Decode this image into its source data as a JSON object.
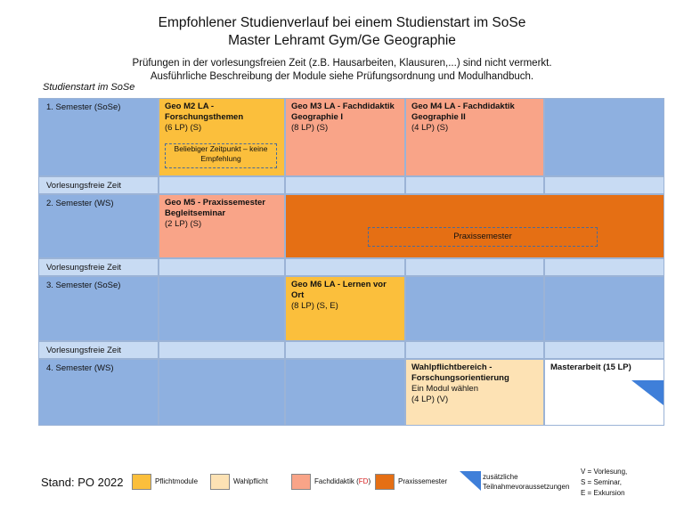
{
  "header": {
    "title_line1": "Empfohlener Studienverlauf bei einem Studienstart im SoSe",
    "title_line2": "Master Lehramt Gym/Ge Geographie",
    "note_line1": "Prüfungen in der vorlesungsfreien Zeit (z.B. Hausarbeiten, Klausuren,...) sind nicht vermerkt.",
    "note_line2": "Ausführliche Beschreibung der Module siehe Prüfungsordnung und Modulhandbuch.",
    "start_label": "Studienstart im SoSe"
  },
  "rows": {
    "sem1": "1. Semester (SoSe)",
    "free1": "Vorlesungsfreie Zeit",
    "sem2": "2. Semester (WS)",
    "free2": "Vorlesungsfreie Zeit",
    "sem3": "3. Semester (SoSe)",
    "free3": "Vorlesungsfreie Zeit",
    "sem4": "4. Semester (WS)"
  },
  "modules": {
    "m2_title": "Geo M2 LA - Forschungsthemen",
    "m2_info": "(6 LP) (S)",
    "m2_note": "Beliebiger Zeitpunkt – keine Empfehlung",
    "m3_title": "Geo M3 LA - Fachdidaktik Geographie I",
    "m3_info": "(8 LP) (S)",
    "m4_title": "Geo M4 LA - Fachdidaktik Geographie II",
    "m4_info": "(4 LP) (S)",
    "m5_title": "Geo M5 - Praxissemester Begleitseminar",
    "m5_info": "(2 LP) (S)",
    "praxis_label": "Praxissemester",
    "m6_title": "Geo M6 LA - Lernen vor Ort",
    "m6_info": "(8 LP) (S, E)",
    "wahl_title": "Wahlpflichtbereich - Forschungsorientierung",
    "wahl_sub": "Ein Modul wählen",
    "wahl_info": "(4 LP) (V)",
    "master_title": "Masterarbeit (15 LP)"
  },
  "legend": {
    "stand": "Stand: PO 2022",
    "pflicht": "Pflichtmodule",
    "wahl": "Wahlpflicht",
    "fd_prefix": "Fachdidaktik (",
    "fd_abbr": "FD",
    "fd_suffix": ")",
    "praxis": "Praxissemester",
    "zusatz_line1": "zusätzliche",
    "zusatz_line2": "Teilnahmevoraussetzungen",
    "abbr_v": "V = Vorlesung,",
    "abbr_s": "S = Seminar,",
    "abbr_e": "E = Exkursion"
  },
  "colors": {
    "pflicht": "#fbbf3c",
    "wahl": "#fde2b4",
    "fachdidaktik": "#f9a488",
    "praxissemester": "#e56f14",
    "semester_bg": "#8eb0e0",
    "free_bg": "#c8dbf3",
    "fd_abbr_red": "#d62020"
  }
}
